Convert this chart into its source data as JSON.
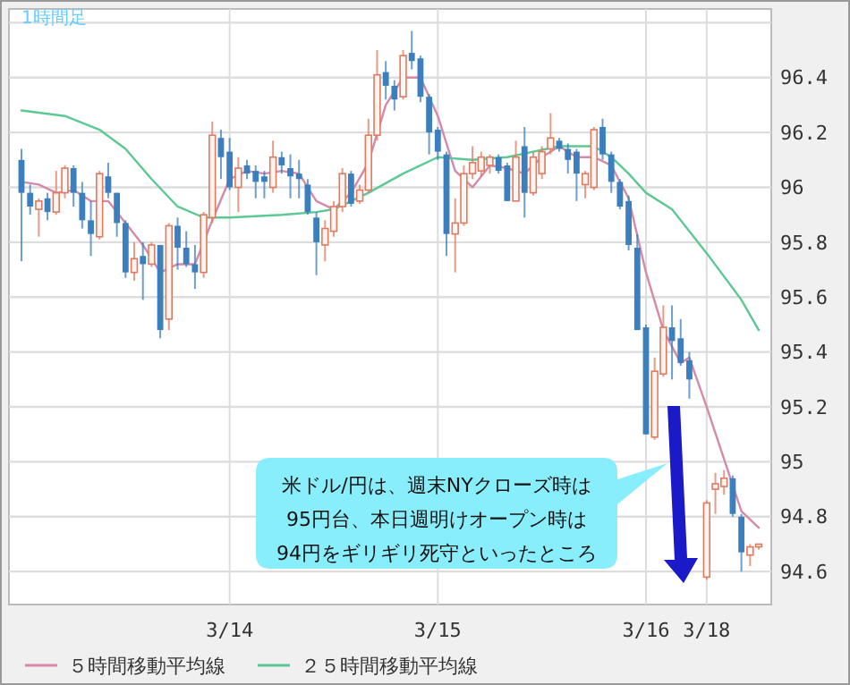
{
  "chart_data": {
    "type": "candlestick",
    "title": "1時間足",
    "categories": [
      null,
      null,
      null,
      null,
      null,
      null,
      null,
      null,
      null,
      null,
      null,
      null,
      null,
      null,
      null,
      null,
      null,
      null,
      null,
      null,
      null,
      null,
      null,
      null,
      "3/14",
      null,
      null,
      null,
      null,
      null,
      null,
      null,
      null,
      null,
      null,
      null,
      null,
      null,
      null,
      null,
      null,
      null,
      null,
      null,
      null,
      null,
      null,
      null,
      "3/15",
      null,
      null,
      null,
      null,
      null,
      null,
      null,
      null,
      null,
      null,
      null,
      null,
      null,
      null,
      null,
      null,
      null,
      null,
      null,
      null,
      null,
      null,
      null,
      "3/16",
      null,
      null,
      null,
      null,
      null,
      null,
      "3/18",
      null,
      null,
      null,
      null,
      null,
      null
    ],
    "ohlc": [
      [
        96.1,
        96.14,
        95.73,
        95.98
      ],
      [
        95.98,
        96.01,
        95.9,
        95.93
      ],
      [
        95.92,
        95.96,
        95.82,
        95.95
      ],
      [
        95.96,
        95.98,
        95.88,
        95.91
      ],
      [
        95.91,
        96.06,
        95.9,
        95.98
      ],
      [
        95.98,
        96.08,
        95.96,
        96.07
      ],
      [
        96.07,
        96.08,
        95.93,
        95.98
      ],
      [
        95.98,
        96.02,
        95.85,
        95.88
      ],
      [
        95.88,
        95.95,
        95.75,
        95.83
      ],
      [
        95.82,
        96.06,
        95.81,
        96.05
      ],
      [
        96.04,
        96.09,
        95.96,
        95.98
      ],
      [
        95.98,
        95.98,
        95.82,
        95.87
      ],
      [
        95.87,
        95.88,
        95.67,
        95.69
      ],
      [
        95.69,
        95.8,
        95.66,
        95.74
      ],
      [
        95.75,
        95.8,
        95.59,
        95.72
      ],
      [
        95.72,
        95.8,
        95.71,
        95.79
      ],
      [
        95.79,
        95.79,
        95.45,
        95.48
      ],
      [
        95.52,
        95.87,
        95.48,
        95.86
      ],
      [
        95.86,
        95.89,
        95.7,
        95.78
      ],
      [
        95.78,
        95.84,
        95.71,
        95.72
      ],
      [
        95.72,
        95.79,
        95.63,
        95.69
      ],
      [
        95.69,
        95.91,
        95.67,
        95.9
      ],
      [
        95.89,
        96.24,
        95.87,
        96.19
      ],
      [
        96.18,
        96.21,
        96.03,
        96.11
      ],
      [
        96.13,
        96.18,
        95.99,
        96.0
      ],
      [
        96.0,
        96.11,
        95.91,
        96.07
      ],
      [
        96.08,
        96.1,
        96.03,
        96.05
      ],
      [
        96.06,
        96.08,
        95.96,
        96.02
      ],
      [
        96.04,
        96.06,
        95.96,
        96.02
      ],
      [
        96.0,
        96.17,
        95.98,
        96.11
      ],
      [
        96.11,
        96.13,
        96.05,
        96.08
      ],
      [
        96.07,
        96.12,
        95.96,
        96.04
      ],
      [
        96.05,
        96.1,
        95.96,
        96.03
      ],
      [
        96.01,
        96.03,
        95.9,
        95.91
      ],
      [
        95.89,
        95.91,
        95.68,
        95.8
      ],
      [
        95.79,
        95.88,
        95.73,
        95.85
      ],
      [
        95.84,
        95.95,
        95.82,
        95.93
      ],
      [
        95.93,
        96.07,
        95.91,
        96.05
      ],
      [
        96.05,
        96.06,
        95.93,
        95.94
      ],
      [
        95.95,
        96.01,
        95.94,
        95.99
      ],
      [
        95.99,
        96.25,
        95.98,
        96.19
      ],
      [
        96.19,
        96.5,
        96.17,
        96.41
      ],
      [
        96.42,
        96.46,
        96.32,
        96.37
      ],
      [
        96.37,
        96.39,
        96.28,
        96.32
      ],
      [
        96.33,
        96.5,
        96.32,
        96.48
      ],
      [
        96.49,
        96.57,
        96.43,
        96.46
      ],
      [
        96.47,
        96.48,
        96.31,
        96.33
      ],
      [
        96.33,
        96.34,
        96.12,
        96.2
      ],
      [
        96.21,
        96.22,
        96.1,
        96.13
      ],
      [
        96.12,
        96.13,
        95.75,
        95.83
      ],
      [
        95.83,
        95.96,
        95.69,
        95.87
      ],
      [
        95.87,
        96.08,
        95.86,
        96.05
      ],
      [
        96.05,
        96.15,
        96.03,
        96.09
      ],
      [
        96.06,
        96.13,
        96.04,
        96.11
      ],
      [
        96.08,
        96.12,
        96.05,
        96.11
      ],
      [
        96.11,
        96.12,
        96.05,
        96.06
      ],
      [
        96.08,
        96.09,
        95.95,
        95.95
      ],
      [
        95.95,
        96.17,
        95.95,
        96.11
      ],
      [
        96.15,
        96.22,
        95.89,
        95.98
      ],
      [
        95.98,
        96.13,
        95.97,
        96.11
      ],
      [
        96.05,
        96.15,
        96.03,
        96.13
      ],
      [
        96.14,
        96.27,
        96.12,
        96.18
      ],
      [
        96.17,
        96.18,
        96.13,
        96.14
      ],
      [
        96.14,
        96.16,
        96.05,
        96.1
      ],
      [
        96.13,
        96.14,
        95.95,
        96.05
      ],
      [
        96.01,
        96.06,
        95.96,
        96.05
      ],
      [
        96.0,
        96.22,
        95.99,
        96.21
      ],
      [
        96.22,
        96.25,
        96.1,
        96.12
      ],
      [
        96.12,
        96.13,
        95.98,
        96.02
      ],
      [
        96.02,
        96.03,
        95.92,
        95.93
      ],
      [
        95.95,
        95.97,
        95.77,
        95.79
      ],
      [
        95.78,
        95.83,
        95.48,
        95.48
      ],
      [
        95.49,
        95.5,
        95.1,
        95.1
      ],
      [
        95.09,
        95.38,
        95.08,
        95.33
      ],
      [
        95.32,
        95.57,
        95.31,
        95.49
      ],
      [
        95.49,
        95.57,
        95.3,
        95.44
      ],
      [
        95.45,
        95.52,
        95.35,
        95.36
      ],
      [
        95.37,
        95.4,
        95.23,
        95.3
      ],
      null,
      [
        94.58,
        94.86,
        94.57,
        94.85
      ],
      [
        94.9,
        94.96,
        94.81,
        94.92
      ],
      [
        94.91,
        94.97,
        94.88,
        94.94
      ],
      [
        94.94,
        94.95,
        94.8,
        94.81
      ],
      [
        94.8,
        94.81,
        94.6,
        94.67
      ],
      [
        94.66,
        94.7,
        94.62,
        94.69
      ],
      [
        94.69,
        94.7,
        94.68,
        94.7
      ]
    ],
    "series": [
      {
        "name": "５時間移動平均線",
        "type": "line",
        "color": "#d48aa8",
        "values": [
          96.02,
          null,
          96.01,
          null,
          95.98,
          null,
          95.99,
          null,
          95.95,
          null,
          95.95,
          null,
          95.87,
          null,
          95.79,
          null,
          95.69,
          null,
          95.72,
          null,
          95.72,
          null,
          95.88,
          null,
          96.03,
          null,
          96.06,
          null,
          96.05,
          null,
          96.06,
          null,
          96.05,
          null,
          95.95,
          null,
          95.92,
          null,
          95.98,
          null,
          96.09,
          null,
          96.3,
          null,
          96.4,
          null,
          96.4,
          null,
          96.26,
          null,
          96.06,
          null,
          96.0,
          null,
          96.08,
          null,
          96.07,
          null,
          96.05,
          null,
          96.11,
          null,
          96.15,
          null,
          96.11,
          null,
          96.11,
          null,
          96.08,
          null,
          95.96,
          null,
          95.69,
          null,
          95.48,
          null,
          95.36,
          95.38,
          null,
          95.2,
          null,
          95.01,
          null,
          94.82,
          null,
          94.76
        ]
      },
      {
        "name": "２５時間移動平均線",
        "type": "line",
        "color": "#5cc894",
        "values": [
          96.28,
          null,
          null,
          null,
          null,
          96.26,
          null,
          null,
          null,
          96.21,
          null,
          null,
          96.14,
          null,
          null,
          96.03,
          null,
          null,
          95.93,
          null,
          null,
          95.89,
          null,
          null,
          95.89,
          null,
          null,
          null,
          null,
          null,
          95.9,
          null,
          null,
          null,
          95.91,
          null,
          95.92,
          null,
          null,
          null,
          95.98,
          null,
          null,
          null,
          96.05,
          null,
          null,
          null,
          96.11,
          null,
          null,
          null,
          96.1,
          null,
          null,
          null,
          96.11,
          null,
          null,
          96.13,
          null,
          null,
          96.15,
          null,
          null,
          null,
          96.15,
          null,
          96.11,
          null,
          96.05,
          null,
          95.98,
          null,
          null,
          95.92,
          null,
          null,
          null,
          95.76,
          null,
          null,
          null,
          95.59,
          null,
          95.48
        ]
      }
    ],
    "ylim": [
      94.48,
      96.65
    ],
    "yticks": [
      94.6,
      94.8,
      95,
      95.2,
      95.4,
      95.6,
      95.8,
      96,
      96.2,
      96.4,
      {
        "value": 96.6,
        "label": null
      }
    ],
    "grid": true,
    "legend": "bottom",
    "annotations": [
      "米ドル/円は、週末NYクローズ時は\n95円台、本日週明けオープン時は\n94円をギリギリ死守といったところ"
    ]
  }
}
